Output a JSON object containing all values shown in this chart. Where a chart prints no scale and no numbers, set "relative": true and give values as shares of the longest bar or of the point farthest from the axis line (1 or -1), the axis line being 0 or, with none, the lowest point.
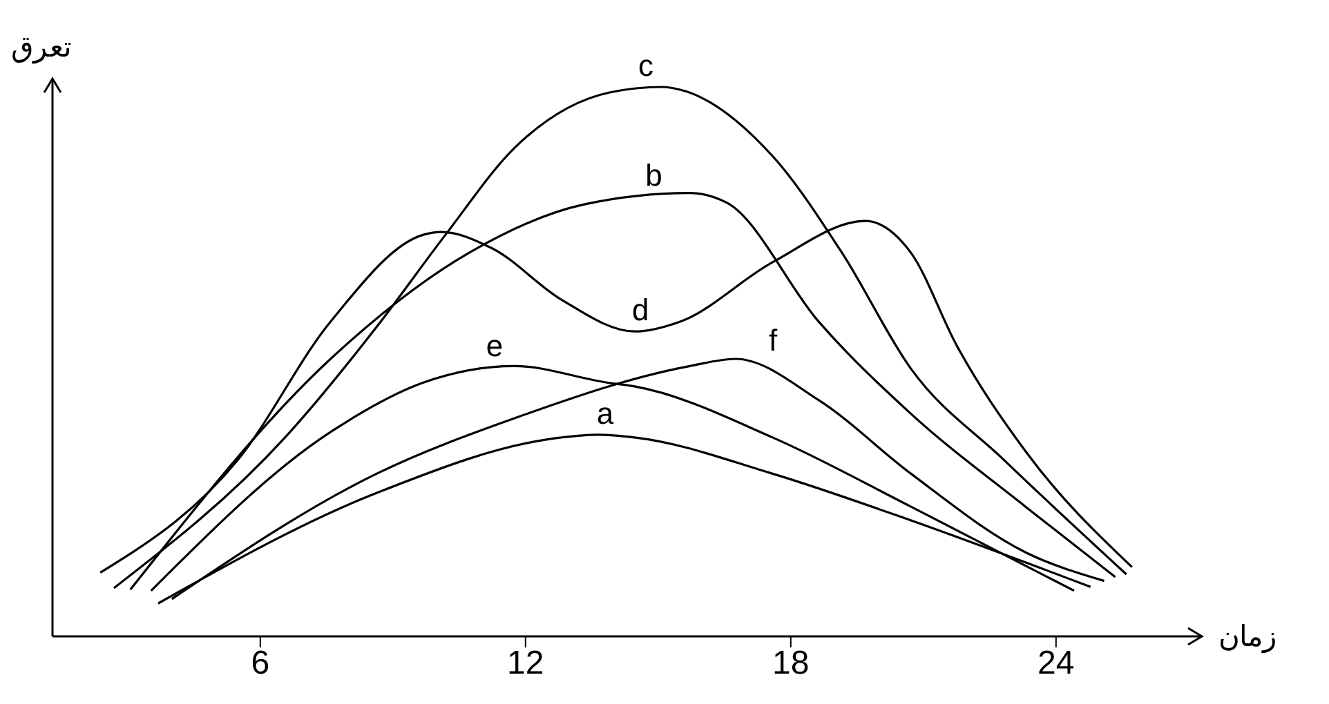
{
  "chart_data": {
    "type": "line",
    "relative": true,
    "xlabel": "زمان",
    "ylabel": "تعرق",
    "xlim": [
      1.3,
      27.3
    ],
    "xticks": [
      6,
      12,
      18,
      24
    ],
    "marker": "none",
    "line_style": "solid",
    "series": [
      {
        "color": "#000000",
        "x": [
          2.69,
          6.56,
          8.63,
          10.19,
          11.75,
          13.9,
          15.09,
          15.5,
          17.59,
          19.16,
          20.72,
          22.81,
          25.59
        ],
        "values": [
          0.088,
          0.362,
          0.563,
          0.731,
          0.889,
          0.99,
          1,
          0.995,
          0.874,
          0.698,
          0.487,
          0.322,
          0.113
        ]
      },
      {
        "color": "#000000",
        "x": [
          3.06,
          7.59,
          10.72,
          13.31,
          15.72,
          16.56,
          18.63,
          20.72,
          23.31,
          25.34
        ],
        "values": [
          0.085,
          0.505,
          0.698,
          0.786,
          0.807,
          0.789,
          0.573,
          0.405,
          0.236,
          0.108
        ]
      },
      {
        "color": "#000000",
        "x": [
          2.38,
          5.5,
          7.59,
          9.69,
          10.09,
          11.25,
          12.81,
          14.47,
          15.5,
          17.59,
          19.69,
          20.72,
          21.75,
          23.31,
          25.72
        ],
        "values": [
          0.116,
          0.322,
          0.573,
          0.731,
          0.736,
          0.706,
          0.613,
          0.555,
          0.573,
          0.681,
          0.756,
          0.698,
          0.53,
          0.337,
          0.126
        ]
      },
      {
        "color": "#000000",
        "x": [
          3.53,
          7.59,
          9.69,
          11.75,
          13.84,
          14.47,
          17.59,
          20.72,
          24.41
        ],
        "values": [
          0.083,
          0.372,
          0.462,
          0.492,
          0.462,
          0.455,
          0.362,
          0.236,
          0.083
        ]
      },
      {
        "color": "#000000",
        "x": [
          4.0,
          8.63,
          11.75,
          15.72,
          16.75,
          18.63,
          20.72,
          23.31,
          25.09
        ],
        "values": [
          0.068,
          0.296,
          0.397,
          0.492,
          0.505,
          0.43,
          0.296,
          0.153,
          0.101
        ]
      },
      {
        "color": "#000000",
        "x": [
          3.69,
          8.63,
          12.81,
          13.63,
          14.47,
          17.59,
          20.72,
          24.78
        ],
        "values": [
          0.06,
          0.261,
          0.362,
          0.367,
          0.362,
          0.296,
          0.211,
          0.09
        ]
      }
    ],
    "annotations": [
      {
        "text": "c",
        "x": 14.72,
        "y": 1
      },
      {
        "text": "b",
        "x": 14.9,
        "y": 0.8
      },
      {
        "text": "d",
        "x": 14.6,
        "y": 0.555
      },
      {
        "text": "e",
        "x": 11.3,
        "y": 0.49
      },
      {
        "text": "f",
        "x": 17.6,
        "y": 0.5
      },
      {
        "text": "a",
        "x": 13.8,
        "y": 0.367
      }
    ]
  }
}
